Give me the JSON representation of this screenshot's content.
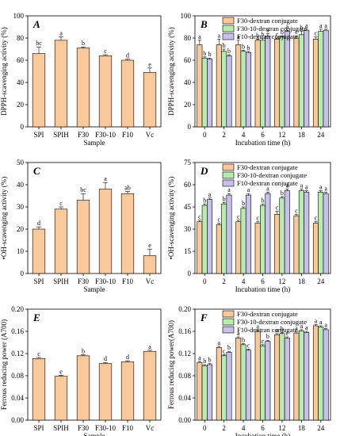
{
  "colors": {
    "bar_single": "#f9c99b",
    "series": [
      "#f9c99b",
      "#b8ebb0",
      "#c7c0ea"
    ],
    "stroke": "#000000"
  },
  "chart_data": [
    {
      "id": "A",
      "letter": "A",
      "type": "bar",
      "categories": [
        "SPI",
        "SPIH",
        "F30",
        "F30-10",
        "F10",
        "Vc"
      ],
      "values": [
        66,
        78,
        71,
        64,
        60,
        49
      ],
      "errors": [
        6,
        3,
        1,
        1,
        1,
        4
      ],
      "sig": [
        "bc",
        "a",
        "b",
        "c",
        "d",
        "e"
      ],
      "xlabel": "Sample",
      "ylabel": "DPPH-scavenging activity (%)",
      "ylim": [
        0,
        100
      ],
      "yticks": [
        0,
        20,
        40,
        60,
        80,
        100
      ]
    },
    {
      "id": "B",
      "letter": "B",
      "type": "bar",
      "categories": [
        "0",
        "2",
        "4",
        "6",
        "12",
        "18",
        "24"
      ],
      "series": [
        {
          "name": "F30-dextran conjugate",
          "values": [
            74,
            74,
            74,
            78,
            79,
            80,
            79
          ],
          "errors": [
            4,
            5,
            4,
            1,
            1,
            2,
            2
          ],
          "sig": [
            "a",
            "a",
            "a",
            "b",
            "c",
            "c",
            "c"
          ]
        },
        {
          "name": "F30-10-dextran conjugate",
          "values": [
            62,
            68,
            68,
            78,
            81,
            83,
            86
          ],
          "errors": [
            1,
            2,
            1,
            2,
            1,
            3,
            2
          ],
          "sig": [
            "b",
            "b",
            "b",
            "b",
            "b",
            "b",
            "a"
          ]
        },
        {
          "name": "F10-dextran conjugate",
          "values": [
            61,
            64,
            67,
            82,
            86,
            87,
            87
          ],
          "errors": [
            1,
            1,
            1,
            2,
            1,
            1,
            1
          ],
          "sig": [
            "b",
            "b",
            "b",
            "a",
            "a",
            "a",
            "a"
          ]
        }
      ],
      "xlabel": "Incubation time (h)",
      "ylabel": "DPPH-scavenging activity (%)",
      "ylim": [
        0,
        100
      ],
      "yticks": [
        0,
        20,
        40,
        60,
        80,
        100
      ]
    },
    {
      "id": "C",
      "letter": "C",
      "type": "bar",
      "categories": [
        "SPI",
        "SPIH",
        "F30",
        "F30-10",
        "F10",
        "Vc"
      ],
      "values": [
        20,
        29,
        33,
        38,
        36,
        8
      ],
      "errors": [
        1,
        1,
        3,
        3,
        1,
        3
      ],
      "sig": [
        "d",
        "c",
        "bc",
        "a",
        "ab",
        "e"
      ],
      "xlabel": "Sample",
      "ylabel": "•OH-scavenging activity (%)",
      "ylim": [
        0,
        50
      ],
      "yticks": [
        0,
        10,
        20,
        30,
        40,
        50
      ]
    },
    {
      "id": "D",
      "letter": "D",
      "type": "bar",
      "categories": [
        "0",
        "2",
        "4",
        "6",
        "12",
        "18",
        "24"
      ],
      "series": [
        {
          "name": "F30-dextran conjugate",
          "values": [
            35,
            33,
            35,
            34,
            40,
            39,
            34
          ],
          "errors": [
            1,
            1,
            1,
            1,
            2,
            1,
            1
          ],
          "sig": [
            "c",
            "c",
            "c",
            "c",
            "c",
            "c",
            "c"
          ]
        },
        {
          "name": "F30-10-dextran conjugate",
          "values": [
            46,
            47,
            44,
            46,
            51,
            56,
            55
          ],
          "errors": [
            1,
            1,
            1,
            1,
            1,
            1,
            1
          ],
          "sig": [
            "b",
            "b",
            "b",
            "b",
            "b",
            "a",
            "a"
          ]
        },
        {
          "name": "F10-dextran conjugate",
          "values": [
            50,
            53,
            53,
            54,
            56,
            55,
            54
          ],
          "errors": [
            1,
            1,
            1,
            1,
            1,
            1,
            1
          ],
          "sig": [
            "a",
            "a",
            "a",
            "a",
            "a",
            "a",
            "a"
          ]
        }
      ],
      "xlabel": "Incubation time (h)",
      "ylabel": "•OH-scavenging activity (%)",
      "ylim": [
        0,
        75
      ],
      "yticks": [
        0,
        15,
        30,
        45,
        60,
        75
      ]
    },
    {
      "id": "E",
      "letter": "E",
      "type": "bar",
      "categories": [
        "SPI",
        "SPIH",
        "F30",
        "F30-10",
        "F10",
        "Vc"
      ],
      "values": [
        0.111,
        0.079,
        0.116,
        0.102,
        0.105,
        0.124
      ],
      "errors": [
        0.002,
        0.002,
        0.002,
        0.002,
        0.002,
        0.002
      ],
      "sig": [
        "c",
        "e",
        "b",
        "d",
        "d",
        "a"
      ],
      "xlabel": "Sample",
      "ylabel": "Ferrous reducing power (A700)",
      "ylim": [
        0,
        0.2
      ],
      "yticks": [
        0,
        0.04,
        0.08,
        0.12,
        0.16,
        0.2
      ],
      "ytick_labels": [
        "0.00",
        "0.04",
        "0.08",
        "0.12",
        "0.16",
        "0.20"
      ]
    },
    {
      "id": "F",
      "letter": "F",
      "type": "bar",
      "categories": [
        "0",
        "2",
        "4",
        "6",
        "12",
        "18",
        "24"
      ],
      "series": [
        {
          "name": "F30-dextran conjugate",
          "values": [
            0.104,
            0.131,
            0.148,
            0.16,
            0.154,
            0.157,
            0.17
          ],
          "errors": [
            0.002,
            0.002,
            0.002,
            0.002,
            0.002,
            0.002,
            0.002
          ],
          "sig": [
            "a",
            "a",
            "a",
            "a",
            "a",
            "a",
            "a"
          ]
        },
        {
          "name": "F30-10-dextran conjugate",
          "values": [
            0.098,
            0.116,
            0.136,
            0.134,
            0.156,
            0.161,
            0.168
          ],
          "errors": [
            0.002,
            0.002,
            0.002,
            0.002,
            0.002,
            0.002,
            0.002
          ],
          "sig": [
            "b",
            "c",
            "b",
            "c",
            "b",
            "a",
            "a"
          ]
        },
        {
          "name": "F10-dextran conjugate",
          "values": [
            0.1,
            0.122,
            0.126,
            0.142,
            0.148,
            0.158,
            0.163
          ],
          "errors": [
            0.002,
            0.002,
            0.002,
            0.002,
            0.002,
            0.002,
            0.002
          ],
          "sig": [
            "b",
            "b",
            "c",
            "b",
            "c",
            "a",
            "a"
          ]
        }
      ],
      "xlabel": "Incubation time (h)",
      "ylabel": "Ferrous reducing power(A700)",
      "ylim": [
        0,
        0.2
      ],
      "yticks": [
        0,
        0.04,
        0.08,
        0.12,
        0.16,
        0.2
      ],
      "ytick_labels": [
        "0.00",
        "0.04",
        "0.08",
        "0.12",
        "0.16",
        "0.20"
      ]
    }
  ]
}
